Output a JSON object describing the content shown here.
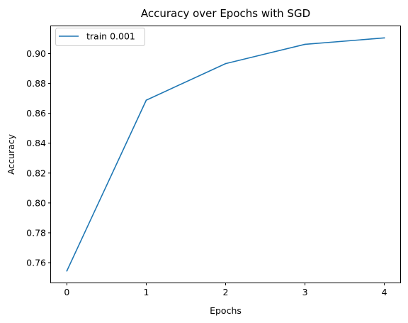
{
  "chart_data": {
    "type": "line",
    "title": "Accuracy over Epochs with SGD",
    "xlabel": "Epochs",
    "ylabel": "Accuracy",
    "x": [
      0,
      1,
      2,
      3,
      4
    ],
    "series": [
      {
        "name": "train 0.001",
        "color": "#1f77b4",
        "values": [
          0.7545,
          0.8688,
          0.8933,
          0.9062,
          0.9105
        ]
      }
    ],
    "xlim": [
      -0.2,
      4.2
    ],
    "ylim": [
      0.7467,
      0.9183
    ],
    "xticks": [
      0,
      1,
      2,
      3,
      4
    ],
    "xtick_labels": [
      "0",
      "1",
      "2",
      "3",
      "4"
    ],
    "yticks": [
      0.76,
      0.78,
      0.8,
      0.82,
      0.84,
      0.86,
      0.88,
      0.9
    ],
    "ytick_labels": [
      "0.76",
      "0.78",
      "0.80",
      "0.82",
      "0.84",
      "0.86",
      "0.88",
      "0.90"
    ],
    "legend": "top-left",
    "grid": false
  }
}
